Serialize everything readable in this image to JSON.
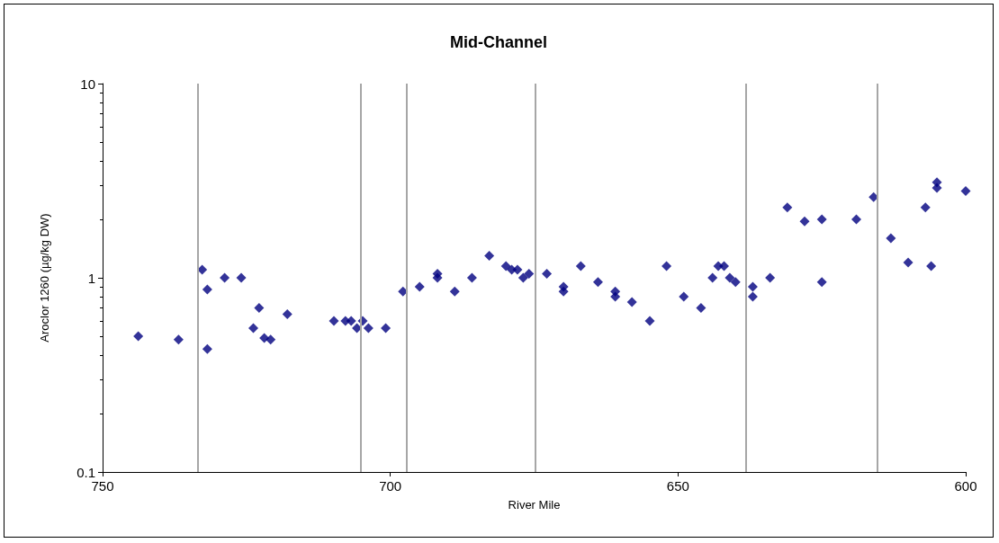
{
  "chart_data": {
    "type": "scatter",
    "title": "Mid-Channel",
    "xlabel": "River Mile",
    "ylabel": "Aroclor 1260 (µg/kg DW)",
    "log": "y",
    "xlim": [
      750,
      600
    ],
    "xticks": [
      750,
      700,
      650,
      600
    ],
    "ylim": [
      0.1,
      10
    ],
    "yticks": [
      0.1,
      1,
      10
    ],
    "grid": false,
    "marker": "diamond",
    "ref_lines": [
      {
        "axis": "x",
        "value": 733.5,
        "color": "#a6a6a6"
      },
      {
        "axis": "x",
        "value": 705.1,
        "color": "#a6a6a6"
      },
      {
        "axis": "x",
        "value": 697.2,
        "color": "#a6a6a6"
      },
      {
        "axis": "x",
        "value": 674.8,
        "color": "#a6a6a6"
      },
      {
        "axis": "x",
        "value": 638.2,
        "color": "#a6a6a6"
      },
      {
        "axis": "x",
        "value": 615.4,
        "color": "#a6a6a6"
      }
    ],
    "series": [
      {
        "color": "#000080",
        "x": [
          732.7,
          731.8,
          728.8,
          725.9,
          631,
          625,
          619,
          616,
          610,
          607,
          605,
          605,
          600
        ],
        "values": [
          1.1,
          0.87,
          1,
          1,
          2.3,
          0.95,
          2,
          2.6,
          1.2,
          2.3,
          3.1,
          2.9,
          2.8
        ]
      },
      {
        "color": "#000080",
        "x": [
          743.8,
          736.8,
          731.8,
          722.8,
          723.8,
          721.9,
          720.8,
          717.9,
          709.8,
          707.8,
          706.8,
          705.8,
          704.8,
          703.8,
          700.8,
          697.8,
          694.9,
          691.8,
          691.8,
          688.8,
          685.8,
          682.8,
          679.9,
          678.9,
          677.9,
          676.9,
          675.9,
          672.8,
          669.9,
          669.9,
          666.9,
          663.9,
          660.9,
          660.9,
          658,
          654.9,
          652,
          649,
          646,
          644,
          643,
          642,
          641,
          640,
          637,
          637,
          634,
          628,
          625,
          613,
          606
        ],
        "values": [
          0.5,
          0.48,
          0.43,
          0.7,
          0.55,
          0.49,
          0.48,
          0.65,
          0.6,
          0.6,
          0.6,
          0.55,
          0.6,
          0.55,
          0.55,
          0.85,
          0.9,
          1.05,
          1,
          0.85,
          1,
          1.3,
          1.15,
          1.1,
          1.1,
          1,
          1.05,
          1.05,
          0.9,
          0.85,
          1.15,
          0.95,
          0.85,
          0.8,
          0.75,
          0.6,
          1.15,
          0.8,
          0.7,
          1,
          1.15,
          1.15,
          1,
          0.95,
          0.9,
          0.8,
          1,
          1.95,
          2,
          1.6,
          1.15
        ]
      }
    ]
  }
}
